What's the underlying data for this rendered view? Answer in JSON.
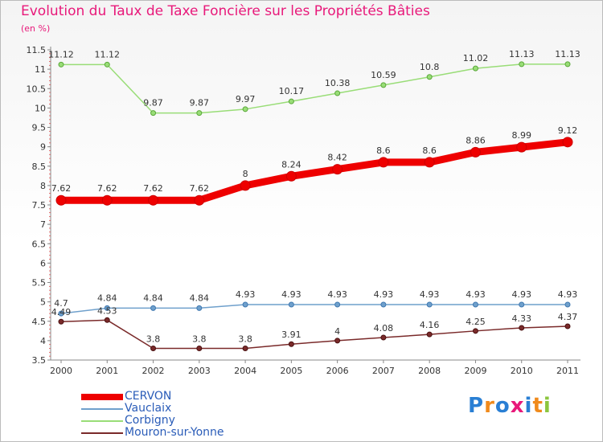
{
  "title": "Evolution du Taux de Taxe Foncière sur les Propriétés Bâties",
  "subtitle": "(en %)",
  "logo": {
    "letters": [
      "P",
      "r",
      "o",
      "x",
      "i",
      "t",
      "i"
    ],
    "colors": [
      "#2a7fd4",
      "#f08a1c",
      "#2a7fd4",
      "#e8197a",
      "#2a7fd4",
      "#f08a1c",
      "#8cc63f"
    ]
  },
  "chart_data": {
    "type": "line",
    "title": "Evolution du Taux de Taxe Foncière sur les Propriétés Bâties",
    "ylabel": "(en %)",
    "xlabel": "",
    "categories": [
      "2000",
      "2001",
      "2002",
      "2003",
      "2004",
      "2005",
      "2006",
      "2007",
      "2008",
      "2009",
      "2010",
      "2011"
    ],
    "ylim": [
      3.5,
      11.5
    ],
    "yticks": [
      "3.5",
      "4",
      "4.5",
      "5",
      "5.5",
      "6",
      "6.5",
      "7",
      "7.5",
      "8",
      "8.5",
      "9",
      "9.5",
      "10",
      "10.5",
      "11",
      "11.5"
    ],
    "grid": false,
    "legend_position": "bottom-left",
    "series": [
      {
        "name": "CERVON",
        "color": "#ee0000",
        "emphasis": true,
        "values": [
          7.62,
          7.62,
          7.62,
          7.62,
          8,
          8.24,
          8.42,
          8.6,
          8.6,
          8.86,
          8.99,
          9.12
        ],
        "labels": [
          "7.62",
          "7.62",
          "7.62",
          "7.62",
          "8",
          "8.24",
          "8.42",
          "8.6",
          "8.6",
          "8.86",
          "8.99",
          "9.12"
        ]
      },
      {
        "name": "Vauclaix",
        "color": "#6fa0cc",
        "emphasis": false,
        "values": [
          4.7,
          4.84,
          4.84,
          4.84,
          4.93,
          4.93,
          4.93,
          4.93,
          4.93,
          4.93,
          4.93,
          4.93
        ],
        "labels": [
          "4.7",
          "4.84",
          "4.84",
          "4.84",
          "4.93",
          "4.93",
          "4.93",
          "4.93",
          "4.93",
          "4.93",
          "4.93",
          "4.93"
        ]
      },
      {
        "name": "Corbigny",
        "color": "#99dd77",
        "emphasis": false,
        "values": [
          11.12,
          11.12,
          9.87,
          9.87,
          9.97,
          10.17,
          10.38,
          10.59,
          10.8,
          11.02,
          11.13,
          11.13
        ],
        "labels": [
          "11.12",
          "11.12",
          "9.87",
          "9.87",
          "9.97",
          "10.17",
          "10.38",
          "10.59",
          "10.8",
          "11.02",
          "11.13",
          "11.13"
        ]
      },
      {
        "name": "Mouron-sur-Yonne",
        "color": "#7a2a2a",
        "emphasis": false,
        "values": [
          4.49,
          4.53,
          3.8,
          3.8,
          3.8,
          3.91,
          4,
          4.08,
          4.16,
          4.25,
          4.33,
          4.37
        ],
        "labels": [
          "4.49",
          "4.53",
          "3.8",
          "3.8",
          "3.8",
          "3.91",
          "4",
          "4.08",
          "4.16",
          "4.25",
          "4.33",
          "4.37"
        ]
      }
    ]
  }
}
